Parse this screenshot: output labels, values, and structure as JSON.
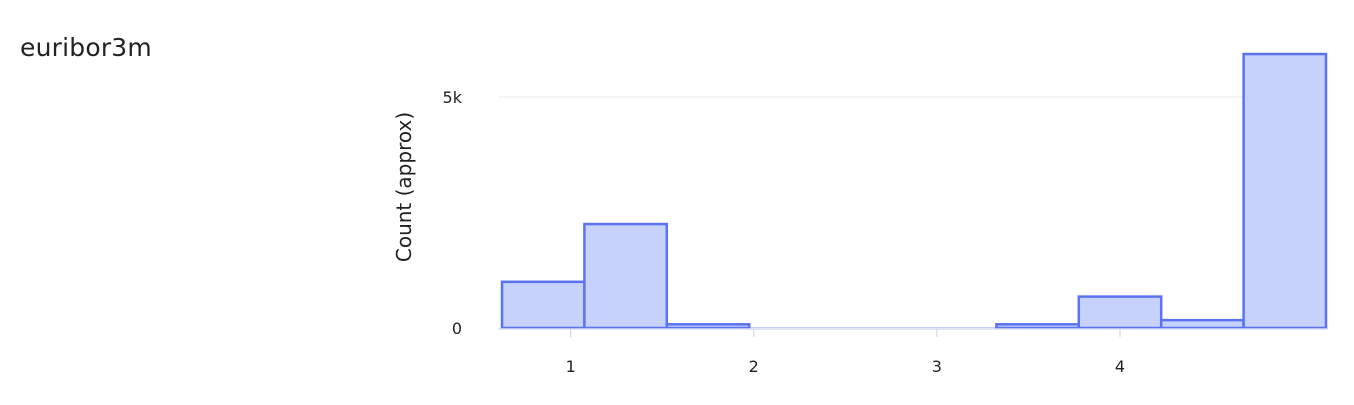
{
  "page": {
    "title": "euribor3m"
  },
  "chart_data": {
    "type": "bar",
    "title": "",
    "xlabel": "",
    "ylabel": "Count (approx)",
    "bins": [
      {
        "x0": 0.625,
        "x1": 1.075,
        "count": 1000
      },
      {
        "x0": 1.075,
        "x1": 1.525,
        "count": 2250
      },
      {
        "x0": 1.525,
        "x1": 1.975,
        "count": 80
      },
      {
        "x0": 1.975,
        "x1": 2.425,
        "count": 0
      },
      {
        "x0": 2.425,
        "x1": 2.875,
        "count": 0
      },
      {
        "x0": 2.875,
        "x1": 3.325,
        "count": 0
      },
      {
        "x0": 3.325,
        "x1": 3.775,
        "count": 80
      },
      {
        "x0": 3.775,
        "x1": 4.225,
        "count": 680
      },
      {
        "x0": 4.225,
        "x1": 4.675,
        "count": 170
      },
      {
        "x0": 4.675,
        "x1": 5.125,
        "count": 5930
      }
    ],
    "xlim": [
      0.625,
      5.125
    ],
    "ylim": [
      0,
      6000
    ],
    "x_ticks": [
      {
        "value": 1,
        "label": "1"
      },
      {
        "value": 2,
        "label": "2"
      },
      {
        "value": 3,
        "label": "3"
      },
      {
        "value": 4,
        "label": "4"
      }
    ],
    "y_ticks": [
      {
        "value": 0,
        "label": "0"
      },
      {
        "value": 5000,
        "label": "5k"
      }
    ],
    "grid": true,
    "colors": {
      "bar_fill": "#c6d2fb",
      "bar_stroke": "#5b73f0",
      "grid": "#ebebeb",
      "axis": "#d6def0"
    }
  }
}
